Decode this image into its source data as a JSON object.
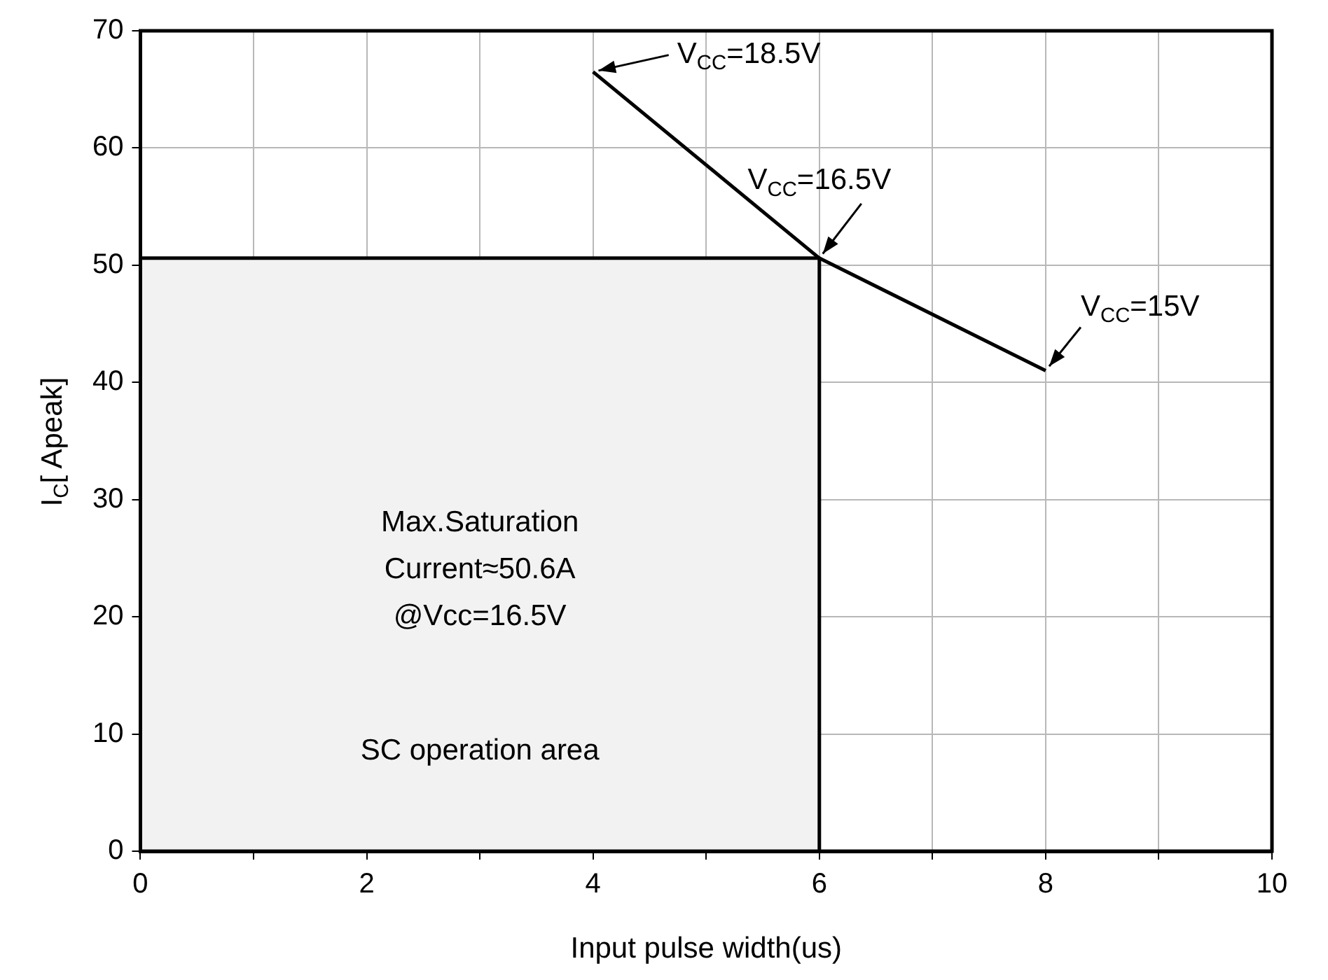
{
  "chart_data": {
    "type": "line",
    "xlabel": "Input pulse width(us)",
    "ylabel": "I$_{C}$[ Apeak]",
    "xlim": [
      0,
      10
    ],
    "xticks": [
      0,
      {
        "value": 1,
        "label": null
      },
      2,
      {
        "value": 3,
        "label": null
      },
      4,
      {
        "value": 5,
        "label": null
      },
      6,
      {
        "value": 7,
        "label": null
      },
      8,
      {
        "value": 9,
        "label": null
      },
      10
    ],
    "ylim": [
      0,
      70
    ],
    "yticks": [
      0,
      10,
      20,
      30,
      40,
      50,
      60,
      70
    ],
    "grid": true,
    "marker": "none",
    "series": [
      {
        "type": "area",
        "color": "#f2f2f2",
        "x": [
          0,
          6,
          6
        ],
        "values": [
          50.6,
          50.6,
          0
        ]
      },
      {
        "type": "line",
        "color": "#000000",
        "x": [
          4,
          6,
          8
        ],
        "values": [
          66.5,
          50.6,
          41
        ]
      }
    ],
    "annotations": [
      {
        "text": "V$_{CC}$=18.5V",
        "x": 4,
        "y": 66.5
      },
      {
        "text": "V$_{CC}$=16.5V",
        "x": 6,
        "y": 50.6
      },
      {
        "text": "V$_{CC}$=15V",
        "x": 8,
        "y": 41
      },
      "Max.Saturation",
      "Current≈50.6A",
      "@Vcc=16.5V",
      "SC operation area"
    ]
  }
}
